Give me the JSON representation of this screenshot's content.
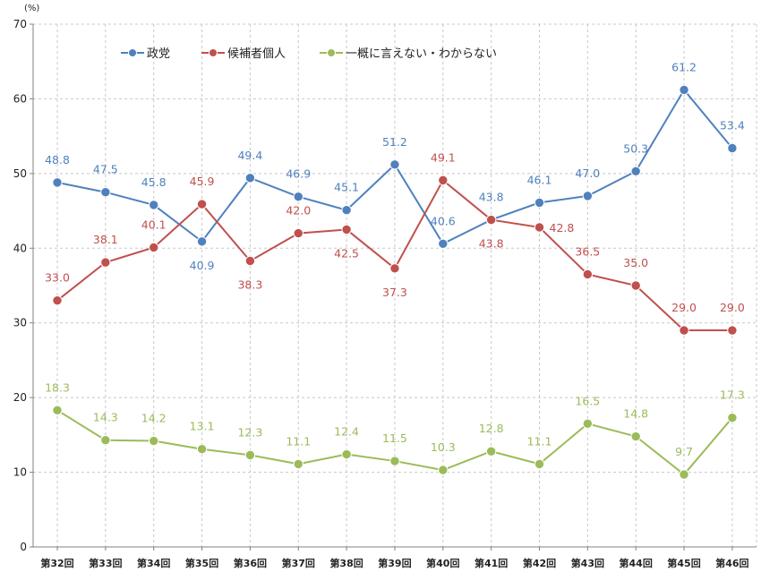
{
  "chart_data": {
    "type": "line",
    "unit_label": "(%)",
    "x": [
      "第32回",
      "第33回",
      "第34回",
      "第35回",
      "第36回",
      "第37回",
      "第38回",
      "第39回",
      "第40回",
      "第41回",
      "第42回",
      "第43回",
      "第44回",
      "第45回",
      "第46回"
    ],
    "ylim": [
      0,
      70
    ],
    "yticks": [
      0,
      10,
      20,
      30,
      40,
      50,
      60,
      70
    ],
    "grid": true,
    "legend_position": "top-left",
    "series": [
      {
        "name": "政党",
        "color": "#4f81bd",
        "values": [
          48.8,
          47.5,
          45.8,
          40.9,
          49.4,
          46.9,
          45.1,
          51.2,
          40.6,
          43.8,
          46.1,
          47.0,
          50.3,
          61.2,
          53.4
        ],
        "labels": [
          "48.8",
          "47.5",
          "45.8",
          "40.9",
          "49.4",
          "46.9",
          "45.1",
          "51.2",
          "40.6",
          "43.8",
          "46.1",
          "47.0",
          "50.3",
          "61.2",
          "53.4"
        ],
        "label_pos": [
          "above",
          "above",
          "above",
          "below",
          "above",
          "above",
          "above",
          "above",
          "above",
          "above",
          "above",
          "above",
          "above",
          "above",
          "above"
        ]
      },
      {
        "name": "候補者個人",
        "color": "#c0504d",
        "values": [
          33.0,
          38.1,
          40.1,
          45.9,
          38.3,
          42.0,
          42.5,
          37.3,
          49.1,
          43.8,
          42.8,
          36.5,
          35.0,
          29.0,
          29.0
        ],
        "labels": [
          "33.0",
          "38.1",
          "40.1",
          "45.9",
          "38.3",
          "42.0",
          "42.5",
          "37.3",
          "49.1",
          "43.8",
          "42.8",
          "36.5",
          "35.0",
          "29.0",
          "29.0"
        ],
        "label_pos": [
          "above",
          "above",
          "above",
          "above",
          "below",
          "above",
          "below",
          "below",
          "above",
          "below",
          "right",
          "above",
          "above",
          "above",
          "above"
        ]
      },
      {
        "name": "一概に言えない・わからない",
        "color": "#9bbb59",
        "values": [
          18.3,
          14.3,
          14.2,
          13.1,
          12.3,
          11.1,
          12.4,
          11.5,
          10.3,
          12.8,
          11.1,
          16.5,
          14.8,
          9.7,
          17.3
        ],
        "labels": [
          "18.3",
          "14.3",
          "14.2",
          "13.1",
          "12.3",
          "11.1",
          "12.4",
          "11.5",
          "10.3",
          "12.8",
          "11.1",
          "16.5",
          "14.8",
          "9.7",
          "17.3"
        ],
        "label_pos": [
          "above",
          "above",
          "above",
          "above",
          "above",
          "above",
          "above",
          "above",
          "above",
          "above",
          "above",
          "above",
          "above",
          "above",
          "above"
        ]
      }
    ]
  }
}
